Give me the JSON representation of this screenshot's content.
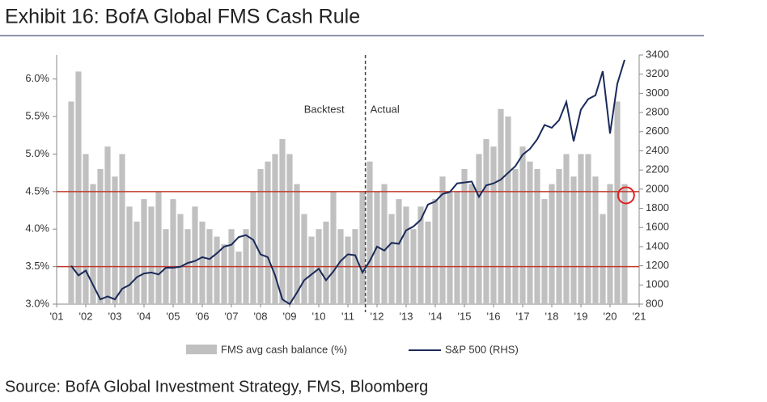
{
  "chart_data": {
    "type": "bar_line",
    "title": "Exhibit 16: BofA Global FMS Cash Rule",
    "source": "Source: BofA Global Investment Strategy, FMS, Bloomberg",
    "annotations": [
      "Backtest",
      "Actual"
    ],
    "divider_x": 2011.6,
    "threshold_lines": [
      4.5,
      3.5
    ],
    "highlight": {
      "x": 2020.55,
      "y": 4.45
    },
    "x": [
      2001.5,
      2001.75,
      2002,
      2002.25,
      2002.5,
      2002.75,
      2003,
      2003.25,
      2003.5,
      2003.75,
      2004,
      2004.25,
      2004.5,
      2004.75,
      2005,
      2005.25,
      2005.5,
      2005.75,
      2006,
      2006.25,
      2006.5,
      2006.75,
      2007,
      2007.25,
      2007.5,
      2007.75,
      2008,
      2008.25,
      2008.5,
      2008.75,
      2009,
      2009.25,
      2009.5,
      2009.75,
      2010,
      2010.25,
      2010.5,
      2010.75,
      2011,
      2011.25,
      2011.5,
      2011.75,
      2012,
      2012.25,
      2012.5,
      2012.75,
      2013,
      2013.25,
      2013.5,
      2013.75,
      2014,
      2014.25,
      2014.5,
      2014.75,
      2015,
      2015.25,
      2015.5,
      2015.75,
      2016,
      2016.25,
      2016.5,
      2016.75,
      2017,
      2017.25,
      2017.5,
      2017.75,
      2018,
      2018.25,
      2018.5,
      2018.75,
      2019,
      2019.25,
      2019.5,
      2019.75,
      2020,
      2020.25,
      2020.5
    ],
    "xlim": [
      2001,
      2021
    ],
    "xticks": [
      {
        "value": 2001,
        "label": "'01"
      },
      {
        "value": 2002,
        "label": "'02"
      },
      {
        "value": 2003,
        "label": "'03"
      },
      {
        "value": 2004,
        "label": "'04"
      },
      {
        "value": 2005,
        "label": "'05"
      },
      {
        "value": 2006,
        "label": "'06"
      },
      {
        "value": 2007,
        "label": "'07"
      },
      {
        "value": 2008,
        "label": "'08"
      },
      {
        "value": 2009,
        "label": "'09"
      },
      {
        "value": 2010,
        "label": "'10"
      },
      {
        "value": 2011,
        "label": "'11"
      },
      {
        "value": 2012,
        "label": "'12"
      },
      {
        "value": 2013,
        "label": "'13"
      },
      {
        "value": 2014,
        "label": "'14"
      },
      {
        "value": 2015,
        "label": "'15"
      },
      {
        "value": 2016,
        "label": "'16"
      },
      {
        "value": 2017,
        "label": "'17"
      },
      {
        "value": 2018,
        "label": "'18"
      },
      {
        "value": 2019,
        "label": "'19"
      },
      {
        "value": 2020,
        "label": "'20"
      },
      {
        "value": 2021,
        "label": "'21"
      }
    ],
    "ylim": [
      3.0,
      6.32
    ],
    "yticks": [
      {
        "value": 3.0,
        "label": "3.0%"
      },
      {
        "value": 3.5,
        "label": "3.5%"
      },
      {
        "value": 4.0,
        "label": "4.0%"
      },
      {
        "value": 4.5,
        "label": "4.5%"
      },
      {
        "value": 5.0,
        "label": "5.0%"
      },
      {
        "value": 5.5,
        "label": "5.5%"
      },
      {
        "value": 6.0,
        "label": "6.0%"
      }
    ],
    "y2lim": [
      800,
      3400
    ],
    "y2ticks": [
      800,
      1000,
      1200,
      1400,
      1600,
      1800,
      2000,
      2200,
      2400,
      2600,
      2800,
      3000,
      3200,
      3400
    ],
    "series": [
      {
        "name": "FMS avg cash balance (%)",
        "color": "#c0c0c0",
        "values": [
          5.7,
          6.1,
          5.0,
          4.6,
          4.8,
          5.1,
          4.7,
          5.0,
          4.3,
          4.1,
          4.4,
          4.3,
          4.5,
          4.0,
          4.4,
          4.2,
          4.0,
          4.3,
          4.1,
          4.0,
          3.9,
          3.8,
          4.0,
          3.7,
          4.0,
          4.5,
          4.8,
          4.9,
          5.0,
          5.2,
          5.0,
          4.6,
          4.2,
          3.9,
          4.0,
          4.1,
          4.5,
          4.0,
          3.9,
          4.0,
          4.5,
          4.9,
          4.5,
          4.6,
          4.2,
          4.4,
          4.3,
          4.0,
          4.3,
          4.1,
          4.4,
          4.7,
          4.5,
          4.5,
          4.8,
          4.6,
          5.0,
          5.2,
          5.1,
          5.6,
          5.5,
          4.8,
          5.1,
          4.9,
          4.8,
          4.4,
          4.6,
          4.8,
          5.0,
          4.7,
          5.0,
          5.0,
          4.7,
          4.2,
          4.6,
          5.7,
          4.6
        ]
      },
      {
        "name": "S&P 500 (RHS)",
        "color": "#1a2a5a",
        "axis": "y2",
        "values": [
          1200,
          1100,
          1150,
          1000,
          850,
          880,
          850,
          960,
          1000,
          1080,
          1120,
          1130,
          1110,
          1180,
          1180,
          1190,
          1230,
          1250,
          1290,
          1270,
          1330,
          1400,
          1420,
          1500,
          1520,
          1470,
          1320,
          1290,
          1100,
          850,
          800,
          920,
          1050,
          1110,
          1170,
          1050,
          1140,
          1250,
          1320,
          1310,
          1130,
          1250,
          1400,
          1360,
          1440,
          1430,
          1570,
          1610,
          1680,
          1840,
          1870,
          1950,
          1970,
          2060,
          2070,
          2080,
          1920,
          2040,
          2060,
          2100,
          2170,
          2240,
          2360,
          2420,
          2520,
          2670,
          2640,
          2720,
          2910,
          2500,
          2830,
          2940,
          2980,
          3230,
          2580,
          3100,
          3350
        ]
      }
    ]
  }
}
